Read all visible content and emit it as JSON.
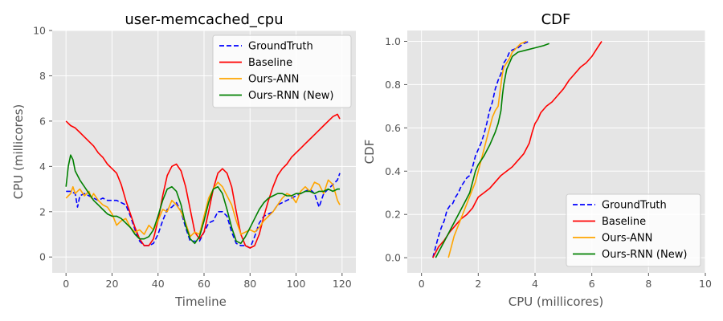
{
  "chart_data": [
    {
      "type": "line",
      "title": "user-memcached_cpu",
      "xlabel": "Timeline",
      "ylabel": "CPU (millicores)",
      "xlim": [
        -6,
        126
      ],
      "ylim": [
        -0.7,
        10
      ],
      "xticks": [
        "0",
        "20",
        "40",
        "60",
        "80",
        "100",
        "120"
      ],
      "yticks": [
        "0",
        "2",
        "4",
        "6",
        "8",
        "10"
      ],
      "grid": true,
      "legend": "top-right",
      "series": [
        {
          "name": "GroundTruth",
          "color": "#0000ff",
          "dash": "dashed",
          "x": [
            0,
            2,
            4,
            5,
            6,
            8,
            10,
            12,
            14,
            16,
            18,
            20,
            22,
            24,
            26,
            28,
            30,
            32,
            34,
            36,
            38,
            40,
            42,
            44,
            46,
            48,
            50,
            52,
            54,
            56,
            58,
            60,
            62,
            64,
            66,
            68,
            70,
            72,
            74,
            76,
            78,
            80,
            82,
            84,
            86,
            88,
            90,
            92,
            94,
            96,
            98,
            100,
            102,
            104,
            106,
            108,
            110,
            112,
            114,
            116,
            118,
            119
          ],
          "y": [
            2.9,
            2.9,
            2.8,
            2.2,
            2.7,
            2.8,
            2.7,
            2.6,
            2.5,
            2.6,
            2.5,
            2.5,
            2.5,
            2.4,
            2.3,
            1.8,
            1.2,
            0.7,
            0.5,
            0.5,
            0.6,
            1.0,
            1.6,
            2.1,
            2.2,
            2.4,
            2.0,
            1.3,
            0.7,
            0.7,
            0.7,
            1.1,
            1.5,
            1.6,
            2.0,
            2.0,
            1.8,
            1.1,
            0.6,
            0.5,
            0.5,
            0.4,
            0.9,
            1.5,
            1.8,
            1.9,
            2.0,
            2.3,
            2.4,
            2.5,
            2.6,
            2.7,
            2.8,
            2.9,
            3.0,
            2.8,
            2.2,
            2.8,
            3.0,
            3.2,
            3.4,
            3.7
          ]
        },
        {
          "name": "Baseline",
          "color": "#ff0000",
          "dash": "solid",
          "x": [
            0,
            2,
            4,
            6,
            8,
            10,
            12,
            14,
            16,
            18,
            20,
            22,
            24,
            26,
            28,
            30,
            32,
            34,
            36,
            38,
            40,
            42,
            44,
            46,
            48,
            50,
            52,
            54,
            56,
            58,
            60,
            62,
            64,
            66,
            68,
            70,
            72,
            74,
            76,
            78,
            80,
            82,
            84,
            86,
            88,
            90,
            92,
            94,
            96,
            98,
            100,
            102,
            104,
            106,
            108,
            110,
            112,
            114,
            116,
            118,
            119
          ],
          "y": [
            6.0,
            5.8,
            5.7,
            5.5,
            5.3,
            5.1,
            4.9,
            4.6,
            4.4,
            4.1,
            3.9,
            3.7,
            3.2,
            2.5,
            1.9,
            1.3,
            0.8,
            0.5,
            0.5,
            0.8,
            1.6,
            2.7,
            3.6,
            4.0,
            4.1,
            3.8,
            3.1,
            2.1,
            1.1,
            0.8,
            1.1,
            2.0,
            3.0,
            3.7,
            3.9,
            3.7,
            3.1,
            2.0,
            1.0,
            0.5,
            0.4,
            0.5,
            1.0,
            1.8,
            2.5,
            3.1,
            3.6,
            3.9,
            4.1,
            4.4,
            4.6,
            4.8,
            5.0,
            5.2,
            5.4,
            5.6,
            5.8,
            6.0,
            6.2,
            6.3,
            6.1
          ]
        },
        {
          "name": "Ours-ANN",
          "color": "#ffa500",
          "dash": "solid",
          "x": [
            0,
            2,
            3,
            4,
            6,
            8,
            10,
            11,
            12,
            14,
            16,
            18,
            20,
            22,
            24,
            26,
            28,
            30,
            32,
            34,
            36,
            38,
            40,
            42,
            44,
            46,
            48,
            50,
            52,
            54,
            56,
            58,
            60,
            62,
            64,
            66,
            68,
            70,
            72,
            74,
            76,
            78,
            80,
            82,
            84,
            86,
            88,
            90,
            92,
            94,
            96,
            98,
            100,
            102,
            104,
            106,
            108,
            110,
            112,
            114,
            116,
            118,
            119
          ],
          "y": [
            2.6,
            2.8,
            3.1,
            2.8,
            3.0,
            2.7,
            2.9,
            2.6,
            2.8,
            2.5,
            2.3,
            2.2,
            1.9,
            1.4,
            1.6,
            1.7,
            1.3,
            1.1,
            1.2,
            1.0,
            1.4,
            1.2,
            1.6,
            2.1,
            2.0,
            2.5,
            2.3,
            2.0,
            1.5,
            0.9,
            1.1,
            1.0,
            1.8,
            2.6,
            3.0,
            3.3,
            3.1,
            2.7,
            2.3,
            1.6,
            1.0,
            1.1,
            1.2,
            1.1,
            1.3,
            1.6,
            1.8,
            2.0,
            2.3,
            2.6,
            2.8,
            2.7,
            2.4,
            2.9,
            3.1,
            2.9,
            3.3,
            3.2,
            2.8,
            3.4,
            3.2,
            2.5,
            2.3
          ]
        },
        {
          "name": "Ours-RNN (New)",
          "color": "#008000",
          "dash": "solid",
          "x": [
            0,
            1,
            2,
            3,
            4,
            6,
            8,
            10,
            12,
            14,
            16,
            18,
            20,
            22,
            24,
            26,
            28,
            30,
            32,
            34,
            36,
            38,
            40,
            42,
            44,
            46,
            48,
            50,
            52,
            54,
            56,
            58,
            60,
            62,
            64,
            66,
            68,
            70,
            72,
            74,
            76,
            78,
            80,
            82,
            84,
            86,
            88,
            90,
            92,
            94,
            96,
            98,
            100,
            102,
            104,
            106,
            108,
            110,
            112,
            114,
            116,
            118,
            119
          ],
          "y": [
            3.1,
            4.0,
            4.5,
            4.3,
            3.8,
            3.4,
            3.1,
            2.8,
            2.5,
            2.3,
            2.1,
            1.9,
            1.8,
            1.8,
            1.7,
            1.5,
            1.3,
            1.0,
            0.8,
            0.8,
            0.9,
            1.2,
            1.8,
            2.5,
            3.0,
            3.1,
            2.9,
            2.3,
            1.4,
            0.8,
            0.6,
            0.9,
            1.6,
            2.4,
            3.0,
            3.1,
            2.8,
            2.1,
            1.3,
            0.7,
            0.6,
            0.9,
            1.3,
            1.7,
            2.1,
            2.4,
            2.6,
            2.7,
            2.8,
            2.8,
            2.7,
            2.7,
            2.8,
            2.8,
            2.9,
            2.9,
            2.8,
            2.9,
            2.9,
            3.0,
            2.9,
            3.0,
            3.0
          ]
        }
      ]
    },
    {
      "type": "line",
      "title": "CDF",
      "xlabel": "CPU (millicores)",
      "ylabel": "CDF",
      "xlim": [
        -0.5,
        10
      ],
      "ylim": [
        -0.07,
        1.05
      ],
      "xticks": [
        "0",
        "2",
        "4",
        "6",
        "8",
        "10"
      ],
      "yticks": [
        "0.0",
        "0.2",
        "0.4",
        "0.6",
        "0.8",
        "1.0"
      ],
      "grid": true,
      "legend": "bottom-right",
      "series": [
        {
          "name": "GroundTruth",
          "color": "#0000ff",
          "dash": "dashed",
          "x": [
            0.4,
            0.5,
            0.6,
            0.7,
            0.8,
            0.9,
            1.0,
            1.1,
            1.2,
            1.3,
            1.4,
            1.5,
            1.6,
            1.7,
            1.8,
            1.9,
            2.0,
            2.1,
            2.2,
            2.3,
            2.4,
            2.5,
            2.6,
            2.7,
            2.8,
            2.9,
            3.0,
            3.1,
            3.2,
            3.4,
            3.6,
            3.8
          ],
          "y": [
            0.0,
            0.05,
            0.1,
            0.14,
            0.17,
            0.22,
            0.24,
            0.25,
            0.28,
            0.3,
            0.33,
            0.35,
            0.37,
            0.38,
            0.42,
            0.47,
            0.5,
            0.53,
            0.57,
            0.62,
            0.68,
            0.72,
            0.78,
            0.82,
            0.85,
            0.9,
            0.92,
            0.95,
            0.96,
            0.97,
            0.99,
            1.0
          ]
        },
        {
          "name": "Baseline",
          "color": "#ff0000",
          "dash": "solid",
          "x": [
            0.4,
            0.6,
            0.8,
            1.0,
            1.2,
            1.4,
            1.6,
            1.8,
            2.0,
            2.2,
            2.4,
            2.6,
            2.8,
            3.0,
            3.2,
            3.4,
            3.6,
            3.8,
            3.9,
            4.0,
            4.1,
            4.2,
            4.4,
            4.6,
            4.8,
            5.0,
            5.2,
            5.4,
            5.6,
            5.8,
            6.0,
            6.2,
            6.35
          ],
          "y": [
            0.0,
            0.05,
            0.08,
            0.12,
            0.15,
            0.18,
            0.2,
            0.23,
            0.28,
            0.3,
            0.32,
            0.35,
            0.38,
            0.4,
            0.42,
            0.45,
            0.48,
            0.53,
            0.58,
            0.62,
            0.64,
            0.67,
            0.7,
            0.72,
            0.75,
            0.78,
            0.82,
            0.85,
            0.88,
            0.9,
            0.93,
            0.97,
            1.0
          ]
        },
        {
          "name": "Ours-ANN",
          "color": "#ffa500",
          "dash": "solid",
          "x": [
            0.95,
            1.05,
            1.15,
            1.3,
            1.45,
            1.6,
            1.75,
            1.9,
            2.0,
            2.1,
            2.2,
            2.3,
            2.4,
            2.5,
            2.6,
            2.7,
            2.75,
            2.8,
            2.85,
            2.9,
            3.0,
            3.1,
            3.2,
            3.35,
            3.5,
            3.7
          ],
          "y": [
            0.0,
            0.05,
            0.1,
            0.15,
            0.2,
            0.25,
            0.3,
            0.35,
            0.4,
            0.45,
            0.5,
            0.55,
            0.6,
            0.65,
            0.68,
            0.7,
            0.75,
            0.8,
            0.85,
            0.88,
            0.9,
            0.92,
            0.95,
            0.97,
            0.99,
            1.0
          ]
        },
        {
          "name": "Ours-RNN (New)",
          "color": "#008000",
          "dash": "solid",
          "x": [
            0.5,
            0.7,
            0.9,
            1.1,
            1.3,
            1.5,
            1.7,
            1.8,
            1.9,
            2.0,
            2.2,
            2.4,
            2.6,
            2.7,
            2.8,
            2.85,
            2.9,
            3.0,
            3.1,
            3.2,
            3.4,
            3.7,
            4.0,
            4.3,
            4.5
          ],
          "y": [
            0.0,
            0.05,
            0.1,
            0.15,
            0.2,
            0.25,
            0.3,
            0.35,
            0.4,
            0.43,
            0.47,
            0.52,
            0.58,
            0.62,
            0.68,
            0.75,
            0.8,
            0.87,
            0.9,
            0.93,
            0.95,
            0.96,
            0.97,
            0.98,
            0.99
          ]
        }
      ]
    }
  ]
}
